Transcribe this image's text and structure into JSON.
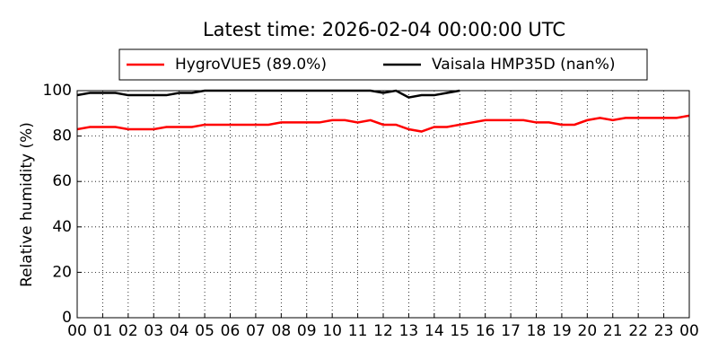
{
  "chart_data": {
    "type": "line",
    "title": "Latest time: 2026-02-04 00:00:00 UTC",
    "y_label": "Relative humidity (%)",
    "x": [
      0,
      0.5,
      1,
      1.5,
      2,
      2.5,
      3,
      3.5,
      4,
      4.5,
      5,
      5.5,
      6,
      6.5,
      7,
      7.5,
      8,
      8.5,
      9,
      9.5,
      10,
      10.5,
      11,
      11.5,
      12,
      12.5,
      13,
      13.5,
      14,
      14.5,
      15,
      15.5,
      16,
      16.5,
      17,
      17.5,
      18,
      18.5,
      19,
      19.5,
      20,
      20.5,
      21,
      21.5,
      22,
      22.5,
      23,
      23.5,
      24
    ],
    "series": [
      {
        "name": "HygroVUE5 (89.0%)",
        "color": "#ff0000",
        "values": [
          83,
          84,
          84,
          84,
          83,
          83,
          83,
          84,
          84,
          84,
          85,
          85,
          85,
          85,
          85,
          85,
          86,
          86,
          86,
          86,
          87,
          87,
          86,
          87,
          85,
          85,
          83,
          82,
          84,
          84,
          85,
          86,
          87,
          87,
          87,
          87,
          86,
          86,
          85,
          85,
          87,
          88,
          87,
          88,
          88,
          88,
          88,
          88,
          89
        ]
      },
      {
        "name": "Vaisala HMP35D (nan%)",
        "color": "#000000",
        "values": [
          98,
          99,
          99,
          99,
          98,
          98,
          98,
          98,
          99,
          99,
          100,
          100,
          100,
          100,
          100,
          100,
          100,
          100,
          100,
          100,
          100,
          100,
          100,
          100,
          99,
          100,
          97,
          98,
          98,
          99,
          100,
          null,
          null,
          null,
          null,
          null,
          null,
          null,
          null,
          null,
          null,
          null,
          null,
          null,
          null,
          null,
          null,
          null,
          null
        ]
      }
    ],
    "xlim": [
      0,
      24
    ],
    "xticks": [
      {
        "value": 0,
        "label": "00"
      },
      {
        "value": 1,
        "label": "01"
      },
      {
        "value": 2,
        "label": "02"
      },
      {
        "value": 3,
        "label": "03"
      },
      {
        "value": 4,
        "label": "04"
      },
      {
        "value": 5,
        "label": "05"
      },
      {
        "value": 6,
        "label": "06"
      },
      {
        "value": 7,
        "label": "07"
      },
      {
        "value": 8,
        "label": "08"
      },
      {
        "value": 9,
        "label": "09"
      },
      {
        "value": 10,
        "label": "10"
      },
      {
        "value": 11,
        "label": "11"
      },
      {
        "value": 12,
        "label": "12"
      },
      {
        "value": 13,
        "label": "13"
      },
      {
        "value": 14,
        "label": "14"
      },
      {
        "value": 15,
        "label": "15"
      },
      {
        "value": 16,
        "label": "16"
      },
      {
        "value": 17,
        "label": "17"
      },
      {
        "value": 18,
        "label": "18"
      },
      {
        "value": 19,
        "label": "19"
      },
      {
        "value": 20,
        "label": "20"
      },
      {
        "value": 21,
        "label": "21"
      },
      {
        "value": 22,
        "label": "22"
      },
      {
        "value": 23,
        "label": "23"
      },
      {
        "value": 24,
        "label": "00"
      }
    ],
    "ylim": [
      0,
      100
    ],
    "yticks": [
      0,
      20,
      40,
      60,
      80,
      100
    ],
    "grid": true
  }
}
